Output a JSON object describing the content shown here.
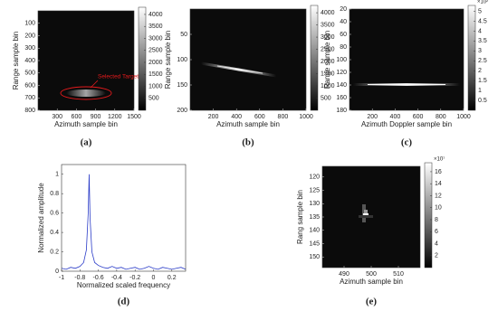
{
  "chart_data": [
    {
      "type": "heatmap",
      "caption": "(a)",
      "xlabel": "Azimuth sample bin",
      "ylabel": "Range sample bin",
      "xlim": [
        0,
        1500
      ],
      "xticks": [
        300,
        600,
        900,
        1200,
        1500
      ],
      "ylim": [
        0,
        800
      ],
      "yticks": [
        100,
        200,
        300,
        400,
        500,
        600,
        700,
        800
      ],
      "annotation": "Selected Target",
      "annotation_color": "#e31a1c",
      "colorbar": {
        "lim": [
          0,
          4300
        ],
        "ticks": [
          500,
          1000,
          1500,
          2000,
          2500,
          3000,
          3500,
          4000
        ]
      }
    },
    {
      "type": "heatmap",
      "caption": "(b)",
      "xlabel": "Azimuth sample bin",
      "ylabel": "Range sample bin",
      "xlim": [
        0,
        1000
      ],
      "xticks": [
        200,
        400,
        600,
        800,
        1000
      ],
      "ylim": [
        0,
        200
      ],
      "yticks": [
        50,
        100,
        150,
        200
      ],
      "colorbar": {
        "lim": [
          0,
          4300
        ],
        "ticks": [
          500,
          1000,
          1500,
          2000,
          2500,
          3000,
          3500,
          4000
        ]
      }
    },
    {
      "type": "heatmap",
      "caption": "(c)",
      "xlabel": "Azimuth Doppler sample bin",
      "ylabel": "Range sample bin",
      "xlim": [
        0,
        1000
      ],
      "xticks": [
        200,
        400,
        600,
        800,
        1000
      ],
      "ylim": [
        20,
        180
      ],
      "yticks": [
        20,
        40,
        60,
        80,
        100,
        120,
        140,
        160,
        180
      ],
      "colorbar": {
        "lim": [
          0,
          5.3
        ],
        "ticks": [
          0.5,
          1,
          1.5,
          2,
          2.5,
          3,
          3.5,
          4,
          4.5,
          5
        ],
        "exponent_label": "×10²"
      }
    },
    {
      "type": "line",
      "caption": "(d)",
      "xlabel": "Normalized scaled frequency",
      "ylabel": "Normalized amplitude",
      "xlim": [
        -1,
        0.35
      ],
      "xticks": [
        -1,
        -0.8,
        -0.6,
        -0.4,
        -0.2,
        0,
        0.2
      ],
      "ylim": [
        0,
        1.1
      ],
      "yticks": [
        0,
        0.2,
        0.4,
        0.6,
        0.8,
        1
      ],
      "x": [
        -1,
        -0.95,
        -0.9,
        -0.85,
        -0.8,
        -0.76,
        -0.73,
        -0.71,
        -0.7,
        -0.69,
        -0.67,
        -0.64,
        -0.6,
        -0.55,
        -0.5,
        -0.45,
        -0.4,
        -0.35,
        -0.3,
        -0.25,
        -0.2,
        -0.15,
        -0.1,
        -0.05,
        0,
        0.05,
        0.1,
        0.15,
        0.2,
        0.25,
        0.3,
        0.35
      ],
      "series": [
        {
          "color": "#2b3cc8",
          "values": [
            0.03,
            0.02,
            0.04,
            0.03,
            0.05,
            0.09,
            0.22,
            0.6,
            1,
            0.55,
            0.2,
            0.09,
            0.06,
            0.04,
            0.03,
            0.05,
            0.03,
            0.04,
            0.02,
            0.03,
            0.04,
            0.02,
            0.03,
            0.05,
            0.03,
            0.02,
            0.04,
            0.03,
            0.02,
            0.03,
            0.04,
            0.02
          ]
        }
      ]
    },
    {
      "type": "heatmap",
      "caption": "(e)",
      "xlabel": "Azimuth sample bin",
      "ylabel": "Rang sample bin",
      "xlim": [
        482,
        518
      ],
      "xticks": [
        490,
        500,
        510
      ],
      "ylim": [
        116,
        154
      ],
      "yticks": [
        120,
        125,
        130,
        135,
        140,
        145,
        150
      ],
      "colorbar": {
        "lim": [
          0,
          17.5
        ],
        "ticks": [
          2,
          4,
          6,
          8,
          10,
          12,
          14,
          16
        ],
        "exponent_label": "×10⁷"
      }
    }
  ]
}
